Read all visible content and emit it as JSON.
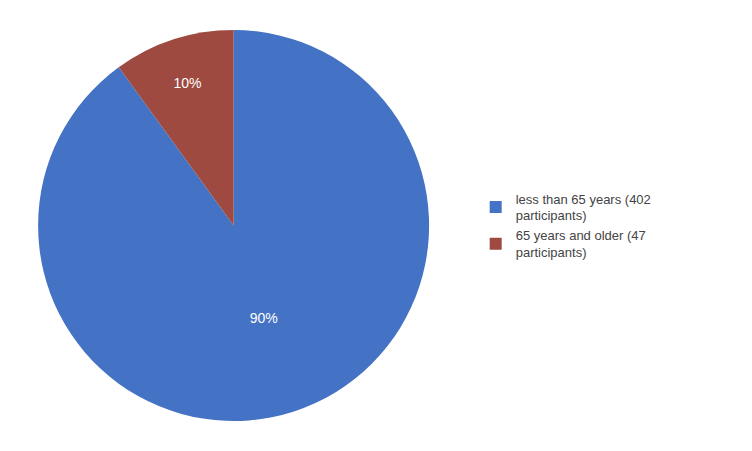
{
  "chart_data": {
    "type": "pie",
    "categories": [
      "less than 65 years (402\nparticipants)",
      "65 years and older (47\nparticipants)"
    ],
    "values": [
      90,
      10
    ],
    "value_labels": [
      "90%",
      "10%"
    ],
    "data_labels": true,
    "colors": [
      "#4472C4",
      "#9E4A40"
    ],
    "legend": "right"
  }
}
